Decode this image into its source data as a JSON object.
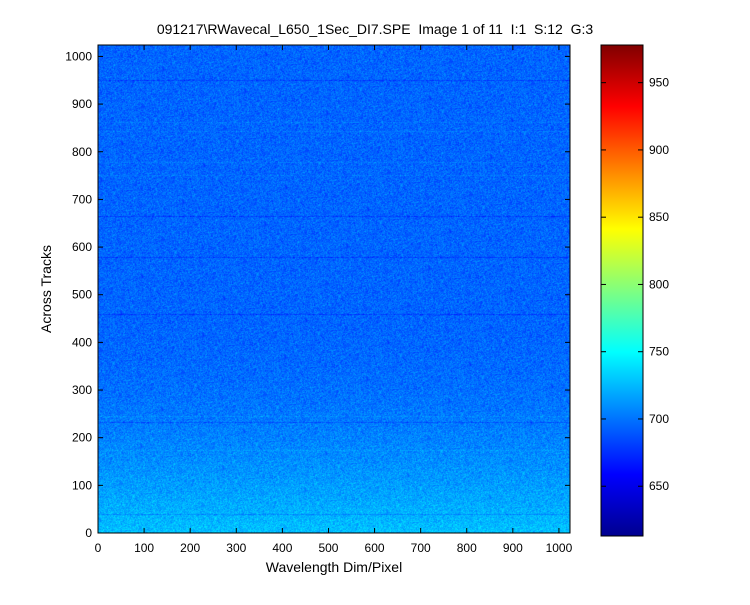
{
  "chart_data": {
    "type": "heatmap",
    "title": "091217\\RWavecal_L650_1Sec_DI7.SPE  Image 1 of 11  I:1  S:12  G:3",
    "xlabel": "Wavelength Dim/Pixel",
    "ylabel": "Across Tracks",
    "xlim": [
      0,
      1024
    ],
    "ylim": [
      0,
      1024
    ],
    "x_ticks": [
      0,
      100,
      200,
      300,
      400,
      500,
      600,
      700,
      800,
      900,
      1000
    ],
    "y_ticks": [
      0,
      100,
      200,
      300,
      400,
      500,
      600,
      700,
      800,
      900,
      1000
    ],
    "colormap": "jet",
    "color_range": [
      613,
      978
    ],
    "colorbar_ticks": [
      650,
      700,
      750,
      800,
      850,
      900,
      950
    ],
    "grid": false,
    "base_intensity": 695,
    "bottom_intensity": 728,
    "dark_rows": [
      40,
      232,
      460,
      580,
      665,
      950
    ],
    "bright_rows": [
      175,
      245,
      752,
      778,
      843,
      863
    ],
    "colors": {
      "jet": [
        "#00008f",
        "#0000ff",
        "#00ffff",
        "#ffff00",
        "#ff0000",
        "#800000"
      ],
      "axis": "#000000",
      "background": "#ffffff"
    }
  }
}
